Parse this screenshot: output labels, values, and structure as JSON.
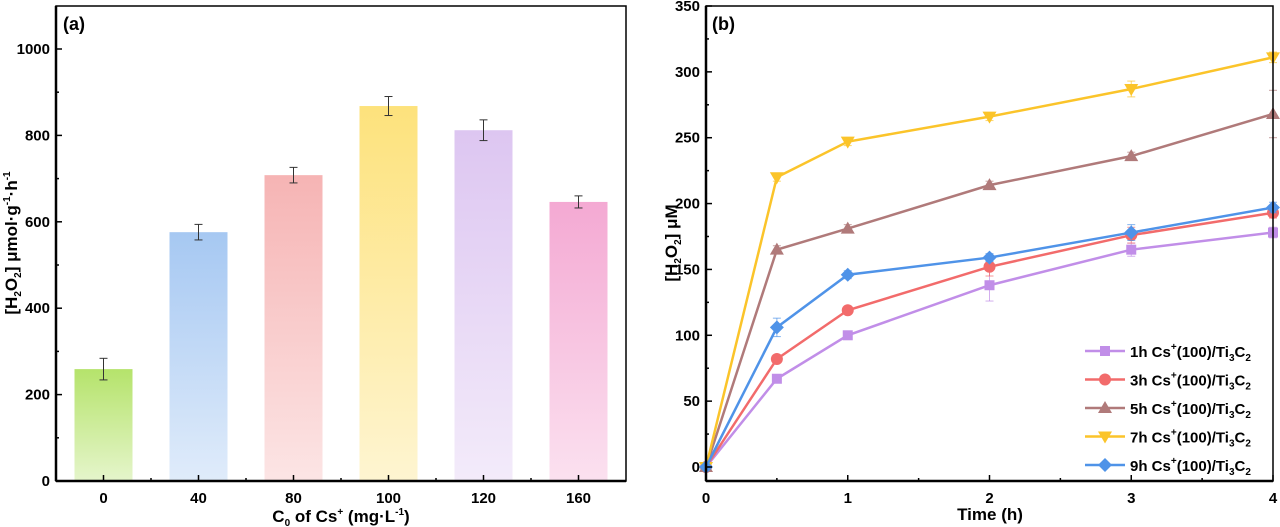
{
  "chart_data": [
    {
      "type": "bar",
      "panel_label": "(a)",
      "title": "",
      "xlabel": {
        "main": "C",
        "sub": "0",
        "rest": " of Cs",
        "sup": "+",
        "unit_pre": " (mg·L",
        "unit_sup": "-1",
        "unit_post": ")"
      },
      "ylabel": {
        "pre": "[H",
        "sub1": "2",
        "mid": "O",
        "sub2": "2",
        "post": "] μmol·g",
        "sup1": "-1",
        "post2": "·h",
        "sup2": "-1"
      },
      "categories": [
        "0",
        "40",
        "80",
        "100",
        "120",
        "160"
      ],
      "values": [
        259,
        576,
        708,
        868,
        812,
        646
      ],
      "errors": [
        25,
        18,
        18,
        22,
        24,
        14
      ],
      "colors": [
        "#b5e36b",
        "#a6c8f2",
        "#f6b4b4",
        "#fde27c",
        "#ddc6f1",
        "#f4a9d3"
      ],
      "ylim": [
        0,
        1100
      ],
      "yticks": [
        0,
        200,
        400,
        600,
        800,
        1000
      ],
      "ytick_labels": [
        "0",
        "200",
        "400",
        "600",
        "800",
        "1000"
      ],
      "grid": false,
      "legend": "none"
    },
    {
      "type": "line",
      "panel_label": "(b)",
      "title": "",
      "xlabel": "Time (h)",
      "ylabel": {
        "pre": "[H",
        "sub1": "2",
        "mid": "O",
        "sub2": "2",
        "post": "] μM"
      },
      "x": [
        0,
        0.5,
        1,
        2,
        3,
        4
      ],
      "xlim": [
        0,
        4
      ],
      "ylim": [
        -10,
        350
      ],
      "xticks": [
        0,
        1,
        2,
        3,
        4
      ],
      "xtick_labels": [
        "0",
        "1",
        "2",
        "3",
        "4"
      ],
      "yticks": [
        0,
        50,
        100,
        150,
        200,
        250,
        300,
        350
      ],
      "ytick_labels": [
        "0",
        "50",
        "100",
        "150",
        "200",
        "250",
        "300",
        "350"
      ],
      "grid": false,
      "legend": "bottom-right",
      "series": [
        {
          "name": "1h Cs+(100)/Ti3C2",
          "label_pre": "1h Cs",
          "color": "#c18ee8",
          "marker": "square",
          "values": [
            0,
            67,
            100,
            138,
            165,
            178
          ],
          "errors": [
            0,
            3,
            3,
            12,
            5,
            4
          ]
        },
        {
          "name": "3h Cs+(100)/Ti3C2",
          "label_pre": "3h Cs",
          "color": "#f26b6b",
          "marker": "circle",
          "values": [
            0,
            82,
            119,
            152,
            176,
            193
          ],
          "errors": [
            0,
            3,
            3,
            7,
            6,
            4
          ]
        },
        {
          "name": "5h Cs+(100)/Ti3C2",
          "label_pre": "5h Cs",
          "color": "#b07a7a",
          "marker": "triangle-up",
          "values": [
            0,
            165,
            181,
            214,
            236,
            268
          ],
          "errors": [
            0,
            3,
            3,
            3,
            3,
            18
          ]
        },
        {
          "name": "7h Cs+(100)/Ti3C2",
          "label_pre": "7h Cs",
          "color": "#fbc42a",
          "marker": "triangle-down",
          "values": [
            0,
            220,
            247,
            266,
            287,
            311
          ],
          "errors": [
            0,
            3,
            3,
            3,
            6,
            4
          ]
        },
        {
          "name": "9h Cs+(100)/Ti3C2",
          "label_pre": "9h Cs",
          "color": "#4f93e8",
          "marker": "diamond",
          "values": [
            0,
            106,
            146,
            159,
            178,
            197
          ],
          "errors": [
            0,
            7,
            3,
            3,
            6,
            4
          ]
        }
      ],
      "legend_suffix": {
        "sup": "+",
        "mid": "(100)/Ti",
        "sub1": "3",
        "c": "C",
        "sub2": "2"
      }
    }
  ]
}
